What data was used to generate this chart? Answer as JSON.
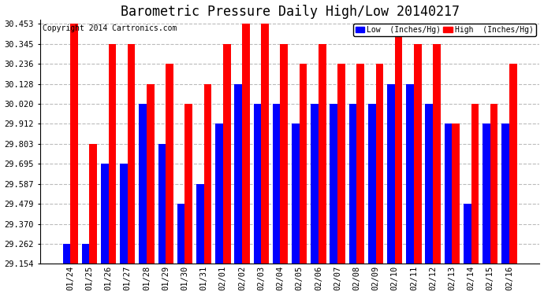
{
  "title": "Barometric Pressure Daily High/Low 20140217",
  "copyright": "Copyright 2014 Cartronics.com",
  "legend_low": "Low  (Inches/Hg)",
  "legend_high": "High  (Inches/Hg)",
  "dates": [
    "01/24",
    "01/25",
    "01/26",
    "01/27",
    "01/28",
    "01/29",
    "01/30",
    "01/31",
    "02/01",
    "02/02",
    "02/03",
    "02/04",
    "02/05",
    "02/06",
    "02/07",
    "02/08",
    "02/09",
    "02/10",
    "02/11",
    "02/12",
    "02/13",
    "02/14",
    "02/15",
    "02/16"
  ],
  "high_values": [
    30.453,
    29.803,
    30.345,
    30.345,
    30.128,
    30.236,
    30.02,
    30.128,
    30.345,
    30.453,
    30.453,
    30.345,
    30.236,
    30.345,
    30.236,
    30.236,
    30.236,
    30.453,
    30.345,
    30.345,
    29.912,
    30.02,
    30.02,
    30.236
  ],
  "low_values": [
    29.262,
    29.262,
    29.695,
    29.695,
    30.02,
    29.803,
    29.479,
    29.587,
    29.912,
    30.128,
    30.02,
    30.02,
    29.912,
    30.02,
    30.02,
    30.02,
    30.02,
    30.128,
    30.128,
    30.02,
    29.912,
    29.479,
    29.912,
    29.912
  ],
  "bar_color_low": "#0000ff",
  "bar_color_high": "#ff0000",
  "bg_color": "#ffffff",
  "grid_color": "#aaaaaa",
  "ylim_min": 29.154,
  "ylim_max": 30.475,
  "yticks": [
    29.154,
    29.262,
    29.37,
    29.479,
    29.587,
    29.695,
    29.803,
    29.912,
    30.02,
    30.128,
    30.236,
    30.345,
    30.453
  ],
  "title_fontsize": 12,
  "tick_fontsize": 7.5,
  "copyright_fontsize": 7
}
